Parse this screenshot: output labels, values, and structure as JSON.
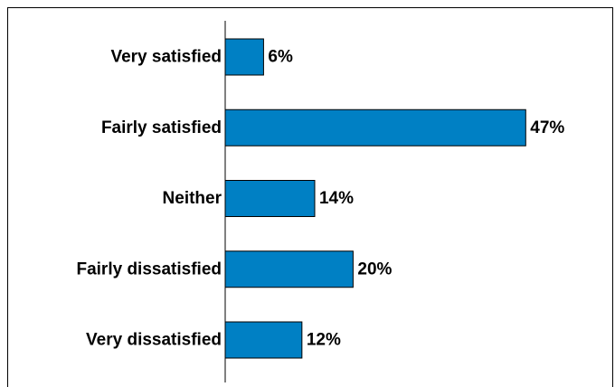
{
  "chart_data": {
    "type": "bar",
    "orientation": "horizontal",
    "categories": [
      "Very satisfied",
      "Fairly satisfied",
      "Neither",
      "Fairly dissatisfied",
      "Very dissatisfied"
    ],
    "values": [
      6,
      47,
      14,
      20,
      12
    ],
    "value_labels": [
      "6%",
      "47%",
      "14%",
      "20%",
      "12%"
    ],
    "unit": "%",
    "xlim": [
      0,
      50
    ],
    "grid": false,
    "legend": "none",
    "colors": {
      "bar": "#0080C4",
      "border": "#000000",
      "axis": "#000000"
    }
  }
}
